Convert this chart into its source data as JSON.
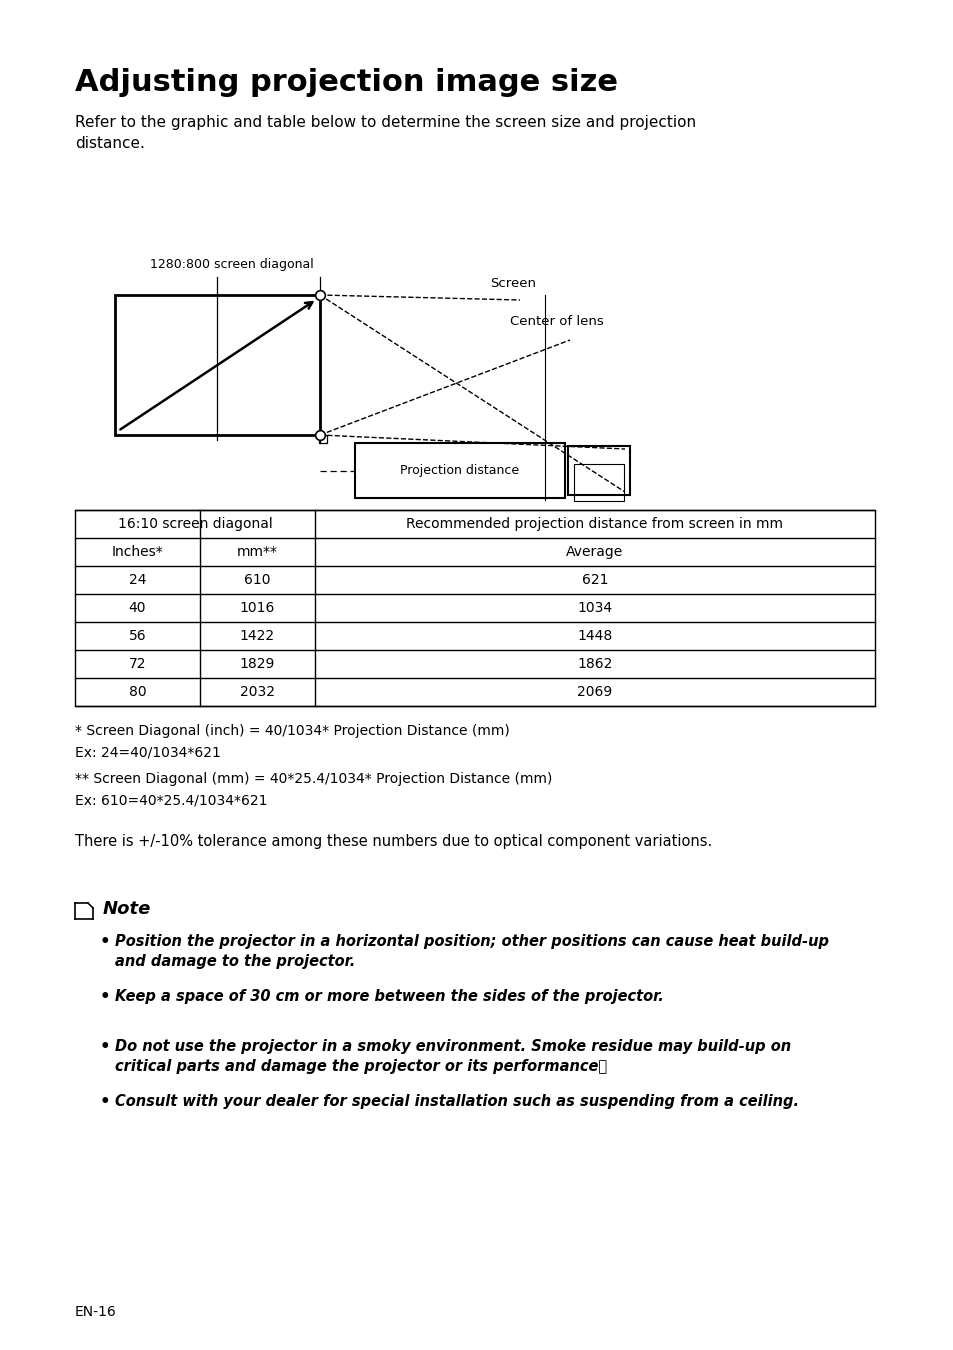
{
  "title": "Adjusting projection image size",
  "subtitle": "Refer to the graphic and table below to determine the screen size and projection\ndistance.",
  "diagram_label": "1280:800 screen diagonal",
  "screen_label": "Screen",
  "lens_label": "Center of lens",
  "proj_dist_label": "Projection distance",
  "table_header1": "16:10 screen diagonal",
  "table_header2": "Recommended projection distance from screen in mm",
  "table_sub1": "Inches*",
  "table_sub2": "mm**",
  "table_sub3": "Average",
  "table_data": [
    [
      "24",
      "610",
      "621"
    ],
    [
      "40",
      "1016",
      "1034"
    ],
    [
      "56",
      "1422",
      "1448"
    ],
    [
      "72",
      "1829",
      "1862"
    ],
    [
      "80",
      "2032",
      "2069"
    ]
  ],
  "footnote1": "* Screen Diagonal (inch) = 40/1034* Projection Distance (mm)",
  "footnote2": "Ex: 24=40/1034*621",
  "footnote3": "** Screen Diagonal (mm) = 40*25.4/1034* Projection Distance (mm)",
  "footnote4": "Ex: 610=40*25.4/1034*621",
  "tolerance": "There is +/-10% tolerance among these numbers due to optical component variations.",
  "note_title": "Note",
  "bullet1_line1": "Position the projector in a horizontal position; other positions can cause heat build-up",
  "bullet1_line2": "and damage to the projector.",
  "bullet2": "Keep a space of 30 cm or more between the sides of the projector.",
  "bullet3_line1": "Do not use the projector in a smoky environment. Smoke residue may build-up on",
  "bullet3_line2": "critical parts and damage the projector or its performance，",
  "bullet4": "Consult with your dealer for special installation such as suspending from a ceiling.",
  "page_num": "EN-16",
  "bg_color": "#ffffff",
  "text_color": "#000000"
}
